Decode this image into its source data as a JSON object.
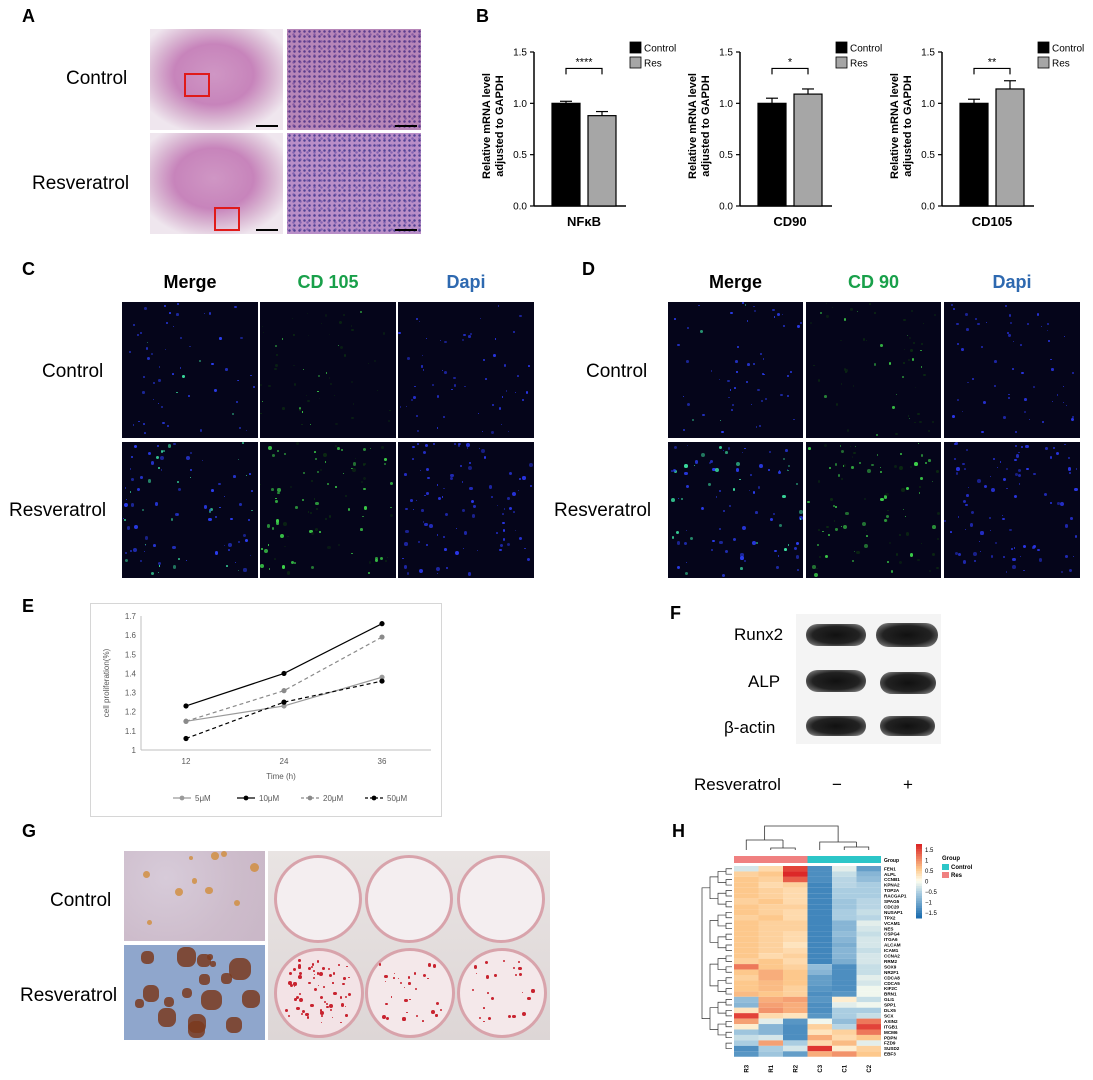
{
  "panels": {
    "A": "A",
    "B": "B",
    "C": "C",
    "D": "D",
    "E": "E",
    "F": "F",
    "G": "G",
    "H": "H"
  },
  "groups": {
    "control": "Control",
    "resveratrol": "Resveratrol"
  },
  "if_headers": {
    "c": {
      "merge": "Merge",
      "marker": "CD 105",
      "dapi": "Dapi"
    },
    "d": {
      "merge": "Merge",
      "marker": "CD 90",
      "dapi": "Dapi"
    }
  },
  "colors": {
    "green": "#19a04a",
    "blue": "#2e69b0",
    "black_bar": "#000000",
    "gray_bar": "#a6a6a6"
  },
  "western": {
    "rows": [
      "Runx2",
      "ALP",
      "β-actin"
    ],
    "treatment_label": "Resveratrol",
    "lanes": [
      "−",
      "+"
    ]
  },
  "chart_data": [
    {
      "type": "bar",
      "categories": [
        "NFκB"
      ],
      "ylabel": "Relative mRNA level adjusted to GAPDH",
      "ylim": [
        0,
        1.5
      ],
      "yticks": [
        "0.0",
        "0.5",
        "1.0",
        "1.5"
      ],
      "series": [
        {
          "name": "Control",
          "values": [
            1.0
          ],
          "error": [
            0.02
          ]
        },
        {
          "name": "Res",
          "values": [
            0.88
          ],
          "error": [
            0.04
          ]
        }
      ],
      "significance": "****",
      "legend": "top-right"
    },
    {
      "type": "bar",
      "categories": [
        "CD90"
      ],
      "ylabel": "Relative mRNA level adjusted to GAPDH",
      "ylim": [
        0,
        1.5
      ],
      "yticks": [
        "0.0",
        "0.5",
        "1.0",
        "1.5"
      ],
      "series": [
        {
          "name": "Control",
          "values": [
            1.0
          ],
          "error": [
            0.05
          ]
        },
        {
          "name": "Res",
          "values": [
            1.09
          ],
          "error": [
            0.05
          ]
        }
      ],
      "significance": "*",
      "legend": "top-right"
    },
    {
      "type": "bar",
      "categories": [
        "CD105"
      ],
      "ylabel": "Relative mRNA level adjusted to GAPDH",
      "ylim": [
        0,
        1.5
      ],
      "yticks": [
        "0.0",
        "0.5",
        "1.0",
        "1.5"
      ],
      "series": [
        {
          "name": "Control",
          "values": [
            1.0
          ],
          "error": [
            0.04
          ]
        },
        {
          "name": "Res",
          "values": [
            1.14
          ],
          "error": [
            0.08
          ]
        }
      ],
      "significance": "**",
      "legend": "top-right"
    },
    {
      "type": "line",
      "xlabel": "Time (h)",
      "ylabel": "cell proliferation(%)",
      "x": [
        12,
        24,
        36
      ],
      "xticks": [
        "12",
        "24",
        "36"
      ],
      "ylim": [
        1,
        1.7
      ],
      "yticks": [
        "1",
        "1.1",
        "1.2",
        "1.3",
        "1.4",
        "1.5",
        "1.6",
        "1.7"
      ],
      "series": [
        {
          "name": "5μM",
          "values": [
            1.15,
            1.23,
            1.38
          ],
          "color": "#9a9a9a",
          "dash": false
        },
        {
          "name": "10μM",
          "values": [
            1.23,
            1.4,
            1.66
          ],
          "color": "#000000",
          "dash": false
        },
        {
          "name": "20μM",
          "values": [
            1.15,
            1.31,
            1.59
          ],
          "color": "#8a8a8a",
          "dash": true
        },
        {
          "name": "50μM",
          "values": [
            1.06,
            1.25,
            1.36
          ],
          "color": "#000000",
          "dash": true
        }
      ],
      "legend": "bottom"
    },
    {
      "type": "heatmap",
      "columns": [
        "R3",
        "R1",
        "R2",
        "C3",
        "C1",
        "C2"
      ],
      "group_label": "Group",
      "groups": [
        {
          "name": "Control",
          "color": "#2cc6c8"
        },
        {
          "name": "Res",
          "color": "#f08080"
        }
      ],
      "scale_ticks": [
        "1.5",
        "1",
        "0.5",
        "0",
        "−0.5",
        "−1",
        "−1.5"
      ],
      "rows": [
        {
          "gene": "FEN1",
          "v": [
            -0.3,
            0.4,
            1.6,
            -1.4,
            -0.2,
            -1.2
          ]
        },
        {
          "gene": "ALPL",
          "v": [
            0.5,
            0.6,
            1.8,
            -1.4,
            -0.4,
            -0.9
          ]
        },
        {
          "gene": "CCNB1",
          "v": [
            0.6,
            0.5,
            1.4,
            -1.4,
            -0.5,
            -0.8
          ]
        },
        {
          "gene": "KPNA2",
          "v": [
            0.6,
            0.4,
            0.5,
            -1.5,
            -0.5,
            -0.6
          ]
        },
        {
          "gene": "TOP2A",
          "v": [
            0.6,
            0.5,
            0.4,
            -1.5,
            -0.6,
            -0.6
          ]
        },
        {
          "gene": "RACGAP1",
          "v": [
            0.6,
            0.5,
            0.4,
            -1.5,
            -0.6,
            -0.6
          ]
        },
        {
          "gene": "SPAG5",
          "v": [
            0.5,
            0.6,
            0.4,
            -1.5,
            -0.7,
            -0.5
          ]
        },
        {
          "gene": "CDC20",
          "v": [
            0.6,
            0.5,
            0.5,
            -1.5,
            -0.7,
            -0.5
          ]
        },
        {
          "gene": "NUSAP1",
          "v": [
            0.6,
            0.5,
            0.4,
            -1.5,
            -0.6,
            -0.4
          ]
        },
        {
          "gene": "TPX2",
          "v": [
            0.5,
            0.6,
            0.4,
            -1.5,
            -0.6,
            -0.5
          ]
        },
        {
          "gene": "VCAM1",
          "v": [
            0.6,
            0.5,
            0.5,
            -1.5,
            -0.9,
            -0.2
          ]
        },
        {
          "gene": "NES",
          "v": [
            0.6,
            0.5,
            0.5,
            -1.5,
            -0.9,
            -0.3
          ]
        },
        {
          "gene": "CSPG4",
          "v": [
            0.6,
            0.5,
            0.4,
            -1.5,
            -0.8,
            -0.4
          ]
        },
        {
          "gene": "ITGA6",
          "v": [
            0.6,
            0.5,
            0.4,
            -1.5,
            -0.9,
            -0.3
          ]
        },
        {
          "gene": "ALCAM",
          "v": [
            0.6,
            0.5,
            0.3,
            -1.5,
            -1.0,
            -0.3
          ]
        },
        {
          "gene": "ICAM1",
          "v": [
            0.6,
            0.5,
            0.4,
            -1.5,
            -0.9,
            -0.4
          ]
        },
        {
          "gene": "CCNA2",
          "v": [
            0.6,
            0.4,
            0.5,
            -1.5,
            -0.9,
            -0.3
          ]
        },
        {
          "gene": "RRM2",
          "v": [
            0.5,
            0.6,
            0.4,
            -1.5,
            -1.0,
            -0.3
          ]
        },
        {
          "gene": "SOX9",
          "v": [
            1.2,
            0.6,
            0.5,
            -0.8,
            -1.4,
            -0.4
          ]
        },
        {
          "gene": "NR2F1",
          "v": [
            0.6,
            0.8,
            0.6,
            -0.9,
            -1.4,
            -0.4
          ]
        },
        {
          "gene": "CDCA8",
          "v": [
            0.5,
            0.8,
            0.6,
            -1.2,
            -1.4,
            -0.2
          ]
        },
        {
          "gene": "CDCA5",
          "v": [
            0.6,
            0.7,
            0.6,
            -1.2,
            -1.4,
            -0.3
          ]
        },
        {
          "gene": "KIF2C",
          "v": [
            0.6,
            0.7,
            0.5,
            -1.3,
            -1.4,
            -0.1
          ]
        },
        {
          "gene": "BRN1",
          "v": [
            0.7,
            0.6,
            0.5,
            -1.4,
            -1.3,
            -0.1
          ]
        },
        {
          "gene": "GLI1",
          "v": [
            -0.8,
            0.8,
            0.9,
            -1.3,
            0.2,
            -0.4
          ]
        },
        {
          "gene": "SPP1",
          "v": [
            -0.9,
            0.9,
            0.8,
            -1.4,
            -0.2,
            -0.1
          ]
        },
        {
          "gene": "DLX5",
          "v": [
            0.3,
            1.0,
            0.8,
            -1.4,
            -0.6,
            -0.6
          ]
        },
        {
          "gene": "SCX",
          "v": [
            1.6,
            0.4,
            0.3,
            -1.3,
            -0.6,
            -0.4
          ]
        },
        {
          "gene": "AXIN2",
          "v": [
            0.9,
            -0.2,
            -1.3,
            -0.1,
            -0.8,
            1.2
          ]
        },
        {
          "gene": "ITGB1",
          "v": [
            0.2,
            -0.9,
            -1.4,
            0.5,
            -0.5,
            1.6
          ]
        },
        {
          "gene": "MCM6",
          "v": [
            -0.7,
            -0.9,
            -1.4,
            0.3,
            0.5,
            1.2
          ]
        },
        {
          "gene": "PDPN",
          "v": [
            -0.4,
            -0.3,
            -1.4,
            0.8,
            0.4,
            0.6
          ]
        },
        {
          "gene": "FZD9",
          "v": [
            -0.6,
            0.9,
            -0.6,
            0.4,
            0.7,
            -0.2
          ]
        },
        {
          "gene": "SUSD2",
          "v": [
            -1.4,
            -0.6,
            -0.3,
            1.7,
            0.2,
            0.5
          ]
        },
        {
          "gene": "EBF3",
          "v": [
            -1.3,
            -0.7,
            -1.2,
            0.8,
            1.0,
            0.6
          ]
        }
      ]
    }
  ]
}
